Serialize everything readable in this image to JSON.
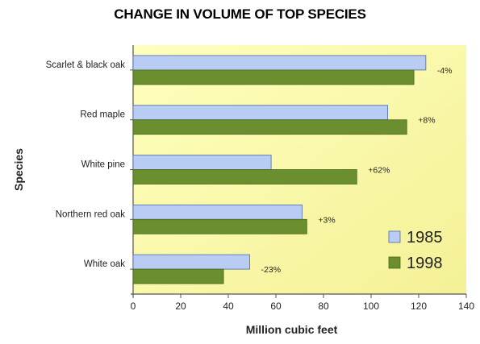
{
  "chart_data": {
    "type": "bar",
    "orientation": "horizontal",
    "title": "CHANGE IN VOLUME OF TOP SPECIES",
    "xlabel": "Million cubic feet",
    "ylabel": "Species",
    "categories": [
      "Scarlet & black oak",
      "Red maple",
      "White pine",
      "Northern red oak",
      "White oak"
    ],
    "series": [
      {
        "name": "1985",
        "color": "#b9cdf4",
        "values": [
          123,
          107,
          58,
          71,
          49
        ]
      },
      {
        "name": "1998",
        "color": "#6b8e2f",
        "values": [
          118,
          115,
          94,
          73,
          38
        ]
      }
    ],
    "change_labels": [
      "-4%",
      "+8%",
      "+62%",
      "+3%",
      "-23%"
    ],
    "xlim": [
      0,
      140
    ],
    "xticks": [
      0,
      20,
      40,
      60,
      80,
      100,
      120,
      140
    ],
    "grid": false,
    "legend_position": "bottom-right",
    "plot_background": "#ffffaa"
  }
}
